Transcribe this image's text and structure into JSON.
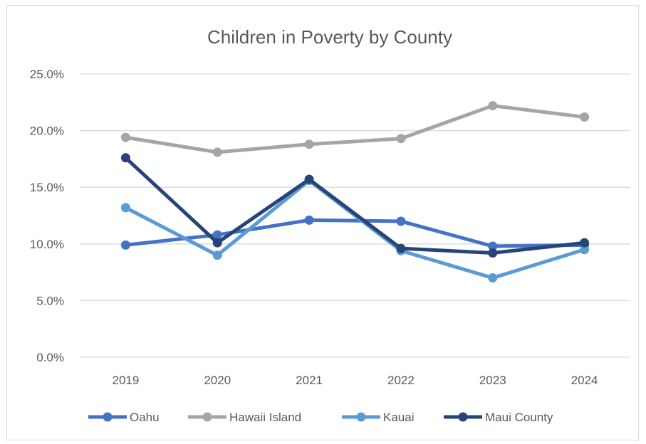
{
  "chart_data": {
    "type": "line",
    "title": "Children in Poverty by County",
    "categories": [
      "2019",
      "2020",
      "2021",
      "2022",
      "2023",
      "2024"
    ],
    "ylim": [
      0,
      25
    ],
    "yticks": [
      0,
      5,
      10,
      15,
      20,
      25
    ],
    "ytick_labels": [
      "0.0%",
      "5.0%",
      "10.0%",
      "15.0%",
      "20.0%",
      "25.0%"
    ],
    "grid": true,
    "legend_position": "bottom",
    "series": [
      {
        "name": "Oahu",
        "color": "#4472c4",
        "values": [
          9.9,
          10.8,
          12.1,
          12.0,
          9.8,
          9.9
        ]
      },
      {
        "name": "Hawaii Island",
        "color": "#a5a5a5",
        "values": [
          19.4,
          18.1,
          18.8,
          19.3,
          22.2,
          21.2
        ]
      },
      {
        "name": "Kauai",
        "color": "#5b9bd5",
        "values": [
          13.2,
          9.0,
          15.6,
          9.4,
          7.0,
          9.5
        ]
      },
      {
        "name": "Maui County",
        "color": "#264478",
        "values": [
          17.6,
          10.1,
          15.7,
          9.6,
          9.2,
          10.1
        ]
      }
    ]
  }
}
